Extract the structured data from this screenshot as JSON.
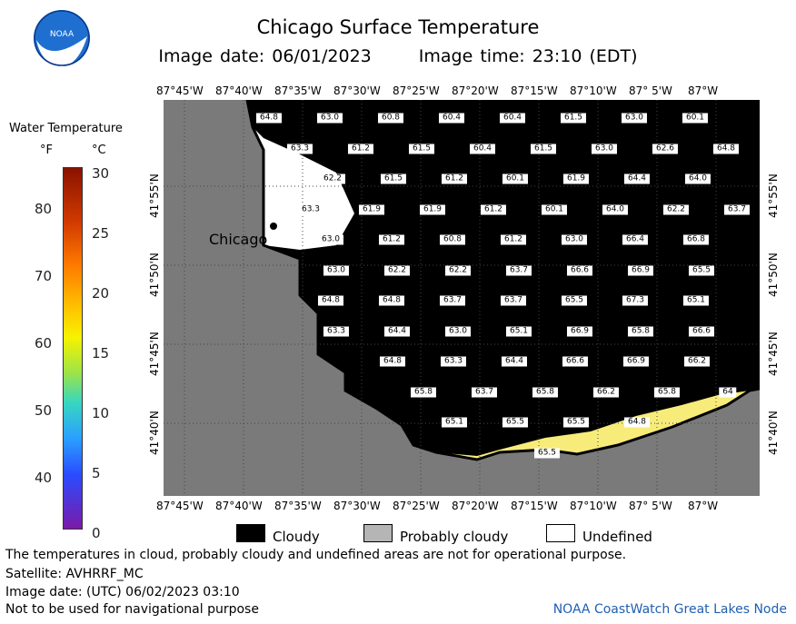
{
  "title": "Chicago Surface Temperature",
  "image_date": "Image date: 06/01/2023",
  "image_time": "Image time: 23:10 (EDT)",
  "logo_text": "NOAA",
  "legend": {
    "title": "Water Temperature",
    "unit_f": "°F",
    "unit_c": "°C",
    "f_ticks": [
      "80",
      "70",
      "60",
      "50",
      "40"
    ],
    "c_ticks": [
      "30",
      "25",
      "20",
      "15",
      "10",
      "5",
      "0"
    ]
  },
  "longitudes": [
    "87°45'W",
    "87°40'W",
    "87°35'W",
    "87°30'W",
    "87°25'W",
    "87°20'W",
    "87°15'W",
    "87°10'W",
    "87° 5'W",
    "87°W"
  ],
  "latitudes": [
    "41°55'N",
    "41°50'N",
    "41°45'N",
    "41°40'N"
  ],
  "city": "Chicago",
  "temps": [
    [
      "64.8",
      "63.0",
      "60.8",
      "60.4",
      "60.4",
      "61.5",
      "63.0",
      "60.1"
    ],
    [
      "63.3",
      "61.2",
      "61.5",
      "60.4",
      "61.5",
      "63.0",
      "62.6",
      "64.8"
    ],
    [
      "62.2",
      "61.5",
      "61.2",
      "60.1",
      "61.9",
      "64.4",
      "64.0"
    ],
    [
      "63.3",
      "61.9",
      "61.9",
      "61.2",
      "60.1",
      "64.0",
      "62.2",
      "63.7"
    ],
    [
      "63.0",
      "61.2",
      "60.8",
      "61.2",
      "63.0",
      "66.4",
      "66.8"
    ],
    [
      "63.0",
      "62.2",
      "62.2",
      "63.7",
      "66.6",
      "66.9",
      "65.5"
    ],
    [
      "64.8",
      "64.8",
      "63.7",
      "63.7",
      "65.5",
      "67.3",
      "65.1"
    ],
    [
      "63.3",
      "64.4",
      "63.0",
      "65.1",
      "66.9",
      "65.8",
      "66.6"
    ],
    [
      "64.8",
      "63.3",
      "64.4",
      "66.6",
      "66.9",
      "66.2"
    ],
    [
      "65.8",
      "63.7",
      "65.8",
      "66.2",
      "65.8",
      "64"
    ],
    [
      "65.1",
      "65.5",
      "65.5",
      "64.8"
    ],
    [
      "65.5"
    ]
  ],
  "key": {
    "cloudy": "Cloudy",
    "probably_cloudy": "Probably cloudy",
    "undefined": "Undefined"
  },
  "footer": {
    "note": "The temperatures in cloud, probably cloudy and undefined areas are not for operational purpose.",
    "satellite": "Satellite: AVHRRF_MC",
    "utc_date": "Image date: (UTC) 06/02/2023  03:10",
    "nav": "Not to be used for navigational purpose",
    "node": "NOAA CoastWatch Great Lakes Node"
  },
  "colors": {
    "land": "#7a7a7a",
    "cloud": "#000000",
    "warm_water": "#f7ec7a"
  }
}
